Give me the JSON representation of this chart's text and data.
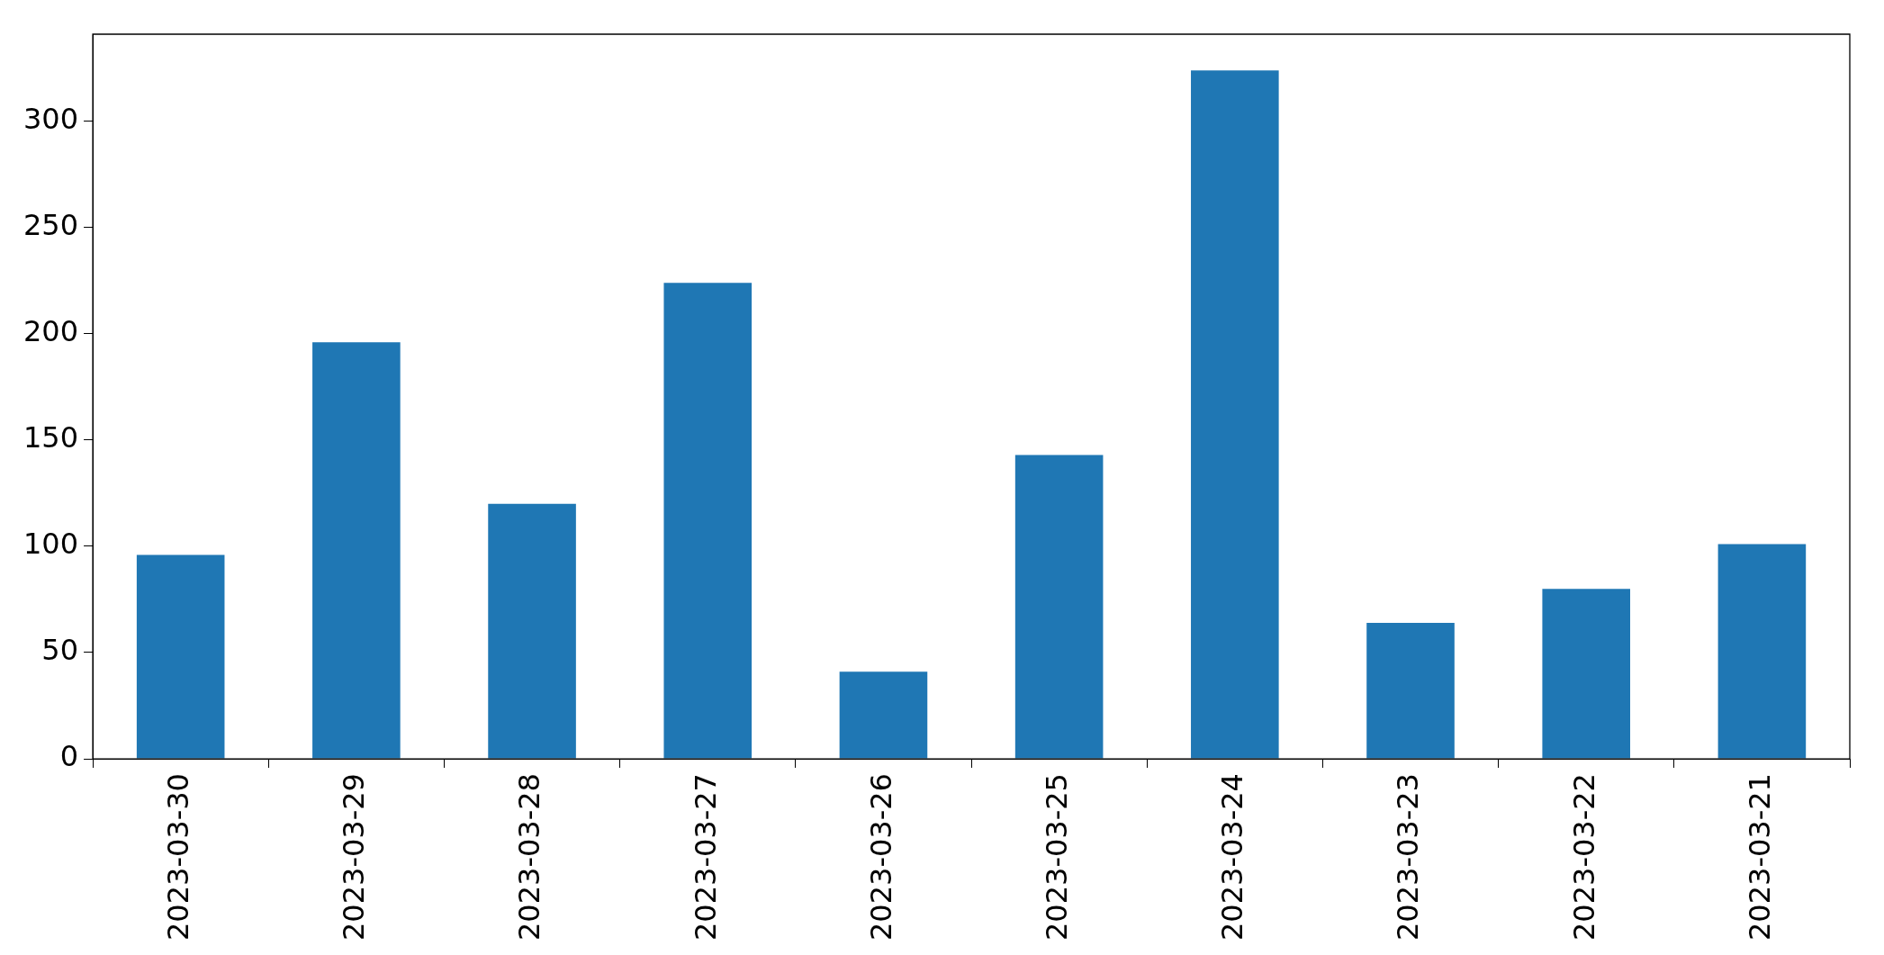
{
  "chart_data": {
    "type": "bar",
    "categories": [
      "2023-03-30",
      "2023-03-29",
      "2023-03-28",
      "2023-03-27",
      "2023-03-26",
      "2023-03-25",
      "2023-03-24",
      "2023-03-23",
      "2023-03-22",
      "2023-03-21"
    ],
    "values": [
      96,
      196,
      120,
      224,
      41,
      143,
      324,
      64,
      80,
      101
    ],
    "color": "#1f77b4",
    "ylim": [
      0,
      341
    ],
    "yticks": [
      0,
      50,
      100,
      150,
      200,
      250,
      300
    ],
    "grid": false,
    "legend": false
  }
}
